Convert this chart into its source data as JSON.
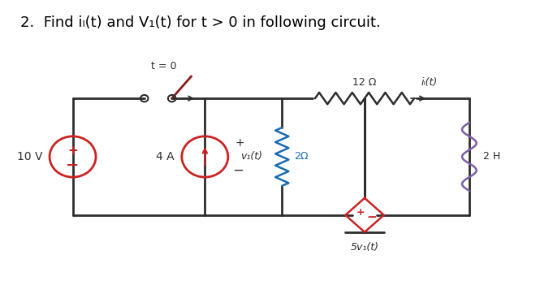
{
  "title": "2.  Find iₗ(t) and V₁(t) for t > 0 in following circuit.",
  "title_fontsize": 13,
  "bg_color": "#ffffff",
  "wire_color": "#2d2d2d",
  "resistor_color_12": "#2d2d2d",
  "resistor_color_2": "#1a6bb5",
  "inductor_color": "#7b5ea7",
  "source_voltage_color": "#cc2222",
  "source_current_color": "#cc2222",
  "dep_source_color": "#cc2222",
  "switch_color": "#8b1a1a",
  "t0_label": "t = 0",
  "label_12ohm": "12 Ω",
  "label_2ohm": "2Ω",
  "label_2H": "2 H",
  "label_10V": "10 V",
  "label_4A": "4 A",
  "label_v1": "v₁(t)",
  "label_iL": "iₗ(t)",
  "label_dep": "5v₁(t)"
}
